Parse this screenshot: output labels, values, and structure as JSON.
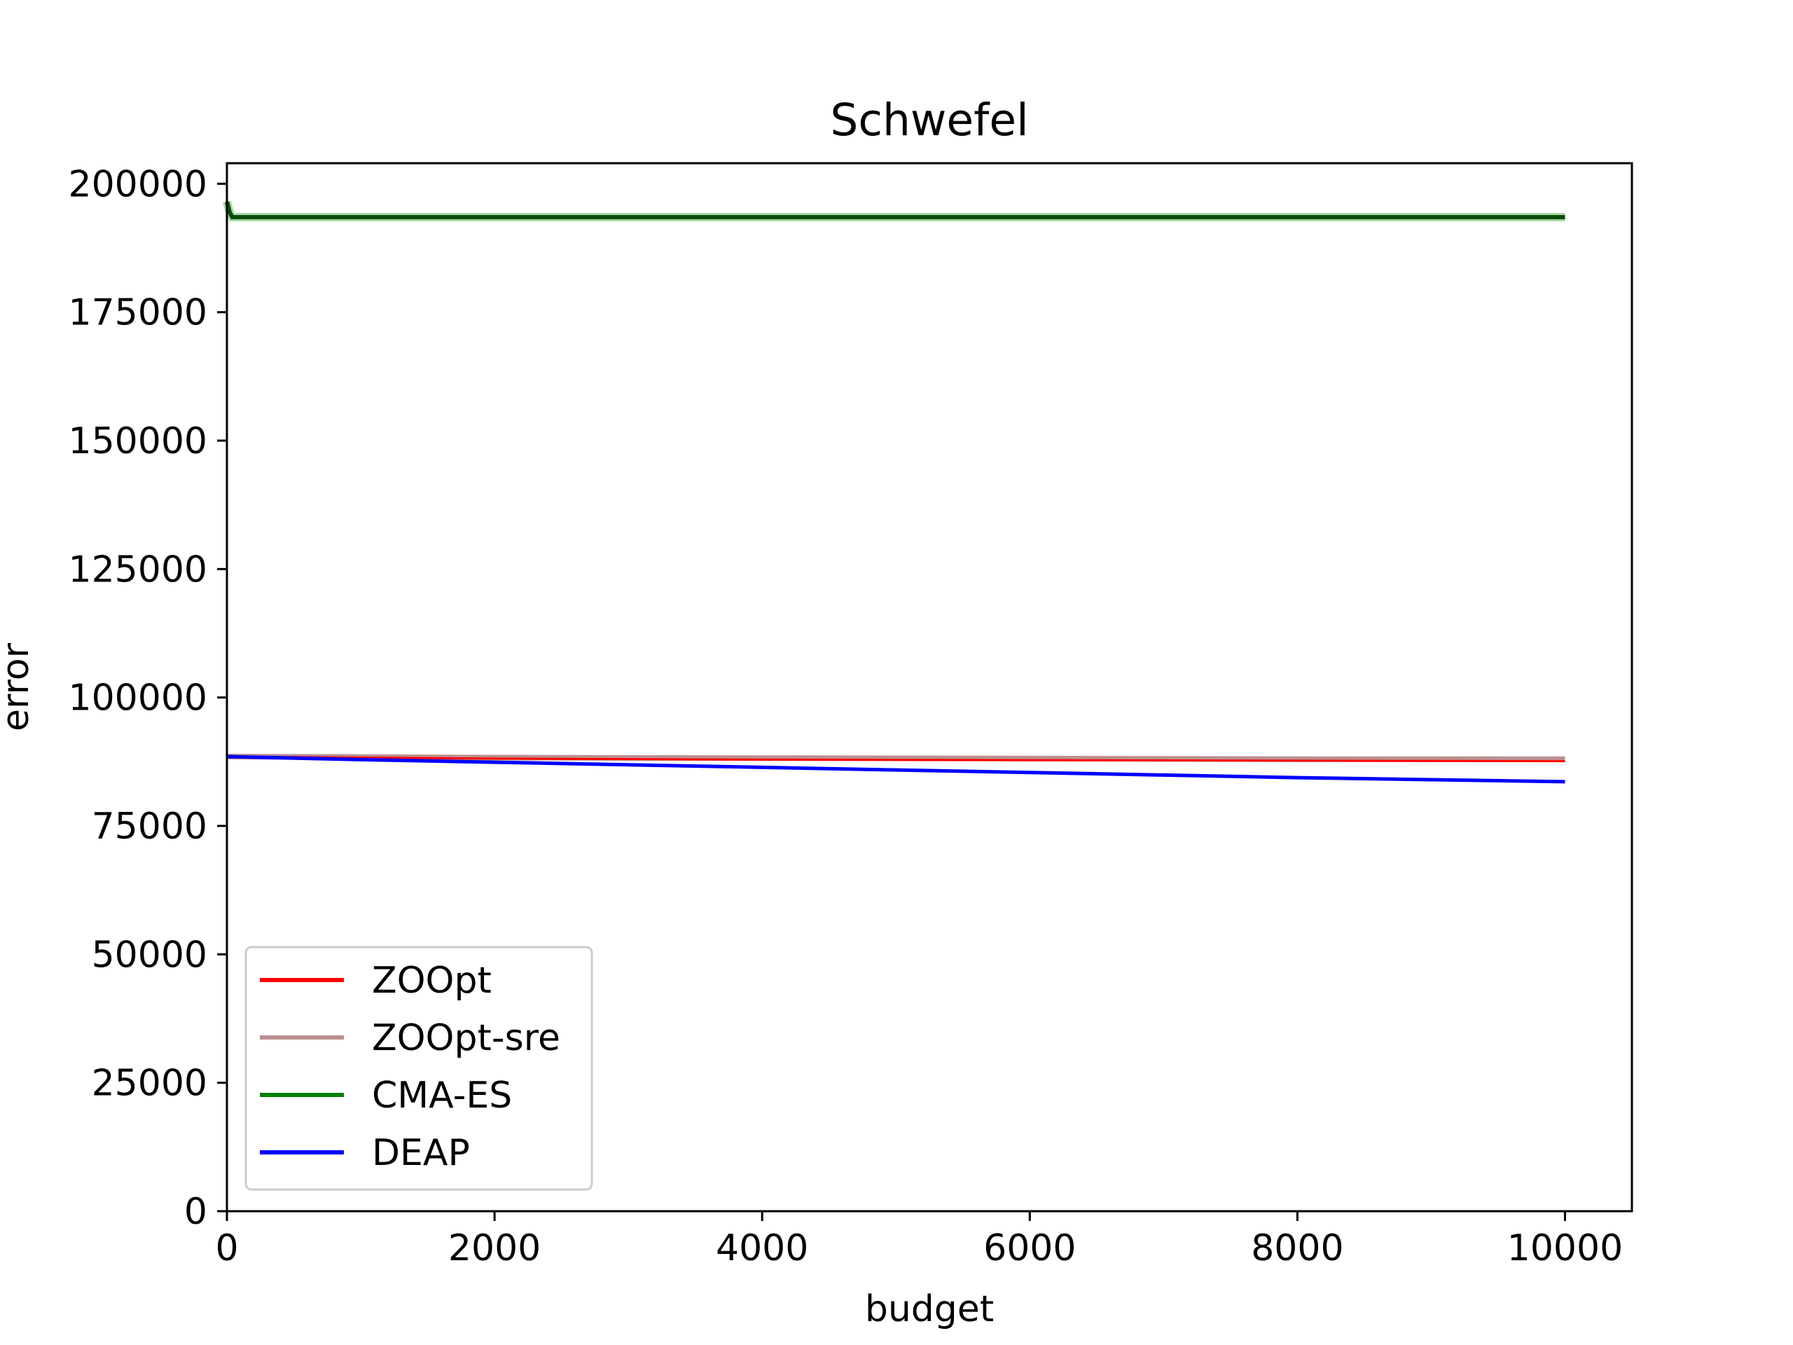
{
  "chart_data": {
    "type": "line",
    "title": "Schwefel",
    "xlabel": "budget",
    "ylabel": "error",
    "xlim": [
      0,
      10500
    ],
    "ylim": [
      0,
      204000
    ],
    "xticks": [
      0,
      2000,
      4000,
      6000,
      8000,
      10000
    ],
    "yticks": [
      0,
      25000,
      50000,
      75000,
      100000,
      125000,
      150000,
      175000,
      200000
    ],
    "grid": false,
    "legend_position": "lower-left",
    "series": [
      {
        "name": "ZOOpt",
        "color": "#ff0000",
        "x": [
          0,
          1000,
          2000,
          4000,
          6000,
          8000,
          10000
        ],
        "y": [
          88500,
          88300,
          88100,
          87900,
          87800,
          87700,
          87600
        ]
      },
      {
        "name": "ZOOpt-sre",
        "color": "#bc8f8f",
        "x": [
          0,
          1000,
          2000,
          4000,
          6000,
          8000,
          10000
        ],
        "y": [
          88500,
          88400,
          88300,
          88200,
          88100,
          88000,
          88000
        ]
      },
      {
        "name": "CMA-ES",
        "color": "#008000",
        "x": [
          0,
          20,
          40,
          100,
          1000,
          5000,
          10000
        ],
        "y": [
          196500,
          194500,
          193500,
          193500,
          193500,
          193500,
          193500
        ]
      },
      {
        "name": "DEAP",
        "color": "#0000ff",
        "x": [
          0,
          1000,
          2000,
          3000,
          4000,
          5000,
          6000,
          7000,
          8000,
          9000,
          10000
        ],
        "y": [
          88500,
          87900,
          87400,
          86900,
          86400,
          85900,
          85400,
          84900,
          84400,
          84000,
          83600
        ]
      }
    ]
  }
}
